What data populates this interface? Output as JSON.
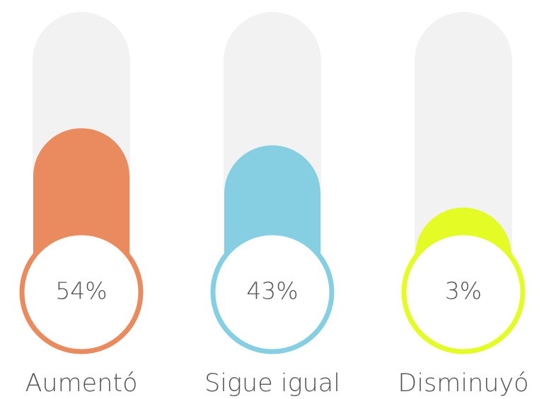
{
  "chart_data": {
    "type": "bar",
    "categories": [
      "Aumentó",
      "Sigue igual",
      "Disminuyó"
    ],
    "values": [
      54,
      43,
      3
    ],
    "value_labels": [
      "54%",
      "43%",
      "3%"
    ],
    "colors": [
      "#e98b5e",
      "#86cfe3",
      "#e5fb26"
    ]
  }
}
